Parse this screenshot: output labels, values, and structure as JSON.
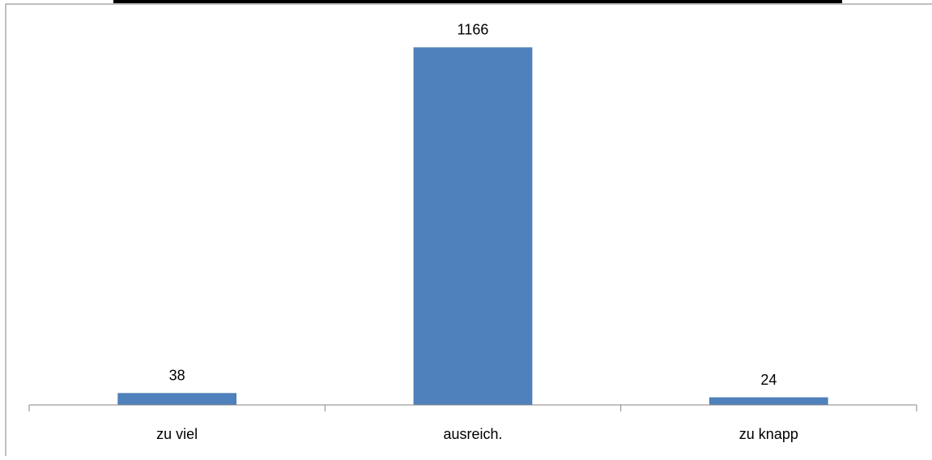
{
  "chart_data": {
    "type": "bar",
    "title": "",
    "xlabel": "",
    "ylabel": "",
    "categories": [
      "zu viel",
      "ausreich.",
      "zu knapp"
    ],
    "values": [
      38,
      1166,
      24
    ],
    "data_labels": [
      "38",
      "1166",
      "24"
    ],
    "ylim": [
      0,
      1300
    ],
    "grid": false,
    "legend": "none",
    "colors": {
      "bar": "#4F81BD",
      "bar_edge": "#3E6FA8",
      "axis": "#868686",
      "text": "#000000",
      "frame": "#7F7F7F"
    }
  }
}
